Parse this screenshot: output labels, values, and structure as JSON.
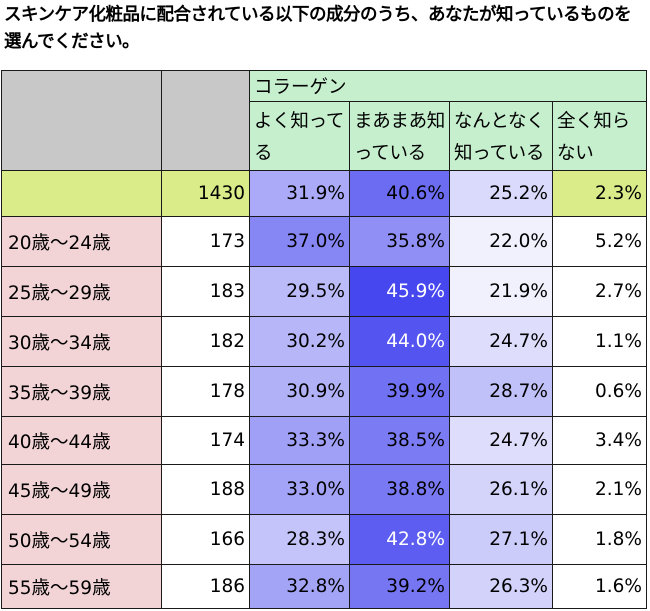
{
  "title": "スキンケア化粧品に配合されている以下の成分のうち、あなたが知っているものを選んでください。",
  "chart_data": {
    "type": "table",
    "ingredient": "コラーゲン",
    "columns": [
      "よく知ってる",
      "まあまあ知っている",
      "なんとなく知っている",
      "全く知らない"
    ],
    "total": {
      "n": "1430",
      "values": [
        "31.9%",
        "40.6%",
        "25.2%",
        "2.3%"
      ]
    },
    "rows": [
      {
        "label": "20歳～24歳",
        "n": "173",
        "values": [
          "37.0%",
          "35.8%",
          "22.0%",
          "5.2%"
        ]
      },
      {
        "label": "25歳～29歳",
        "n": "183",
        "values": [
          "29.5%",
          "45.9%",
          "21.9%",
          "2.7%"
        ]
      },
      {
        "label": "30歳～34歳",
        "n": "182",
        "values": [
          "30.2%",
          "44.0%",
          "24.7%",
          "1.1%"
        ]
      },
      {
        "label": "35歳～39歳",
        "n": "178",
        "values": [
          "30.9%",
          "39.9%",
          "28.7%",
          "0.6%"
        ]
      },
      {
        "label": "40歳～44歳",
        "n": "174",
        "values": [
          "33.3%",
          "38.5%",
          "24.7%",
          "3.4%"
        ]
      },
      {
        "label": "45歳～49歳",
        "n": "188",
        "values": [
          "33.0%",
          "38.8%",
          "26.1%",
          "2.1%"
        ]
      },
      {
        "label": "50歳～54歳",
        "n": "166",
        "values": [
          "28.3%",
          "42.8%",
          "27.1%",
          "1.8%"
        ]
      },
      {
        "label": "55歳～59歳",
        "n": "186",
        "values": [
          "32.8%",
          "39.2%",
          "26.3%",
          "1.6%"
        ]
      }
    ]
  },
  "colors": {
    "header_grey": "#c8c8c8",
    "header_green": "#c6efce",
    "total_lime": "#d9ec89",
    "age_pink": "#f2d4d6",
    "heat_max": "#4646ef",
    "heat_min": "#ffffff"
  }
}
